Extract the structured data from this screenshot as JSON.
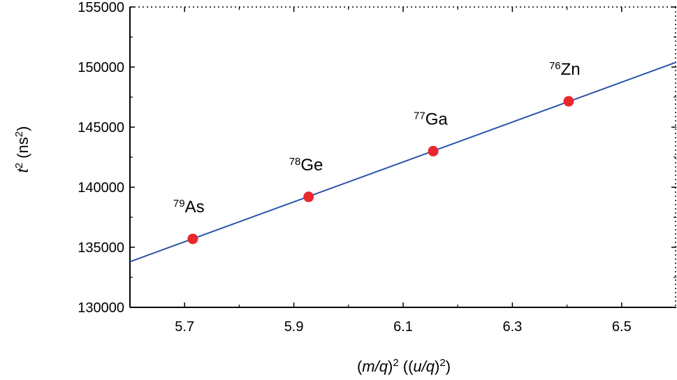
{
  "chart_data": {
    "type": "scatter",
    "title": "",
    "xlabel": {
      "var": "m/q",
      "exp": "2",
      "unit_open": " ((",
      "unit_var": "u/q",
      "unit_close": ")",
      "unit_close2": ")"
    },
    "ylabel": {
      "var": "t",
      "exp": "2",
      "unit": " (ns",
      "unit_exp": "2",
      "unit_close": ")"
    },
    "xlim": [
      5.6,
      6.6
    ],
    "ylim": [
      130000,
      155000
    ],
    "x_ticks": [
      5.7,
      5.9,
      6.1,
      6.3,
      6.5
    ],
    "x_tick_labels": [
      "5.7",
      "5.9",
      "6.1",
      "6.3",
      "6.5"
    ],
    "y_ticks": [
      130000,
      135000,
      140000,
      145000,
      150000,
      155000
    ],
    "y_tick_labels": [
      "130000",
      "135000",
      "140000",
      "145000",
      "150000",
      "155000"
    ],
    "grid": false,
    "points": [
      {
        "mass": "79",
        "element": "As",
        "x": 5.715,
        "y": 135700
      },
      {
        "mass": "78",
        "element": "Ge",
        "x": 5.927,
        "y": 139200
      },
      {
        "mass": "77",
        "element": "Ga",
        "x": 6.155,
        "y": 143000
      },
      {
        "mass": "76",
        "element": "Zn",
        "x": 6.403,
        "y": 147150
      }
    ],
    "fit_line": {
      "x": [
        5.6,
        6.6
      ],
      "y": [
        133800,
        150400
      ]
    },
    "colors": {
      "points": "#e8282b",
      "fit": "#2a55a8",
      "axes": "#000000"
    }
  }
}
